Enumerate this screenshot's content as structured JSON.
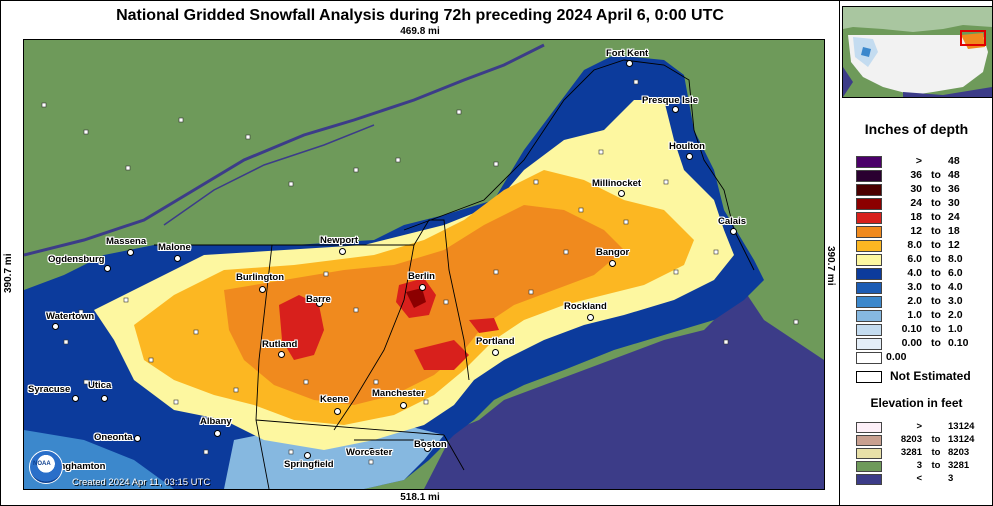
{
  "title": "National Gridded Snowfall Analysis during 72h preceding 2024 April 6, 0:00 UTC",
  "distances": {
    "top": "469.8 mi",
    "bottom": "518.1 mi",
    "left": "390.7 mi",
    "right": "390.7 mi"
  },
  "created": "Created 2024 Apr 11, 03:15 UTC",
  "logo_text": "NOAA",
  "cities": [
    {
      "name": "Fort Kent"
    },
    {
      "name": "Presque Isle"
    },
    {
      "name": "Houlton"
    },
    {
      "name": "Millinocket"
    },
    {
      "name": "Calais"
    },
    {
      "name": "Bangor"
    },
    {
      "name": "Rockland"
    },
    {
      "name": "Portland"
    },
    {
      "name": "Berlin"
    },
    {
      "name": "Newport"
    },
    {
      "name": "Massena"
    },
    {
      "name": "Malone"
    },
    {
      "name": "Ogdensburg"
    },
    {
      "name": "Burlington"
    },
    {
      "name": "Barre"
    },
    {
      "name": "Rutland"
    },
    {
      "name": "Watertown"
    },
    {
      "name": "Syracuse"
    },
    {
      "name": "Utica"
    },
    {
      "name": "Albany"
    },
    {
      "name": "Oneonta"
    },
    {
      "name": "Binghamton"
    },
    {
      "name": "Keene"
    },
    {
      "name": "Manchester"
    },
    {
      "name": "Boston"
    },
    {
      "name": "Worcester"
    },
    {
      "name": "Springfield"
    }
  ],
  "legend": {
    "title": "Inches of depth",
    "rows": [
      {
        "lo": ">",
        "to": "",
        "hi": "48",
        "color": "#4b0069"
      },
      {
        "lo": "36",
        "to": "to",
        "hi": "48",
        "color": "#2a0030"
      },
      {
        "lo": "30",
        "to": "to",
        "hi": "36",
        "color": "#4a0000"
      },
      {
        "lo": "24",
        "to": "to",
        "hi": "30",
        "color": "#8c0000"
      },
      {
        "lo": "18",
        "to": "to",
        "hi": "24",
        "color": "#d8201c"
      },
      {
        "lo": "12",
        "to": "to",
        "hi": "18",
        "color": "#f08a1e"
      },
      {
        "lo": "8.0",
        "to": "to",
        "hi": "12",
        "color": "#fcb722"
      },
      {
        "lo": "6.0",
        "to": "to",
        "hi": "8.0",
        "color": "#fdf7a0"
      },
      {
        "lo": "4.0",
        "to": "to",
        "hi": "6.0",
        "color": "#0c3b9c"
      },
      {
        "lo": "3.0",
        "to": "to",
        "hi": "4.0",
        "color": "#1c5cb4"
      },
      {
        "lo": "2.0",
        "to": "to",
        "hi": "3.0",
        "color": "#3c88cc"
      },
      {
        "lo": "1.0",
        "to": "to",
        "hi": "2.0",
        "color": "#86b8e0"
      },
      {
        "lo": "0.10",
        "to": "to",
        "hi": "1.0",
        "color": "#c4dcf0"
      },
      {
        "lo": "0.00",
        "to": "to",
        "hi": "0.10",
        "color": "#e4eef8"
      },
      {
        "lo": "0.00",
        "to": "",
        "hi": "",
        "color": "#ffffff"
      }
    ],
    "not_estimated": "Not Estimated"
  },
  "elevation": {
    "title": "Elevation in feet",
    "rows": [
      {
        "lo": ">",
        "to": "",
        "hi": "13124",
        "color": "#fdf0f8"
      },
      {
        "lo": "8203",
        "to": "to",
        "hi": "13124",
        "color": "#c8a090"
      },
      {
        "lo": "3281",
        "to": "to",
        "hi": "8203",
        "color": "#e8e0a8"
      },
      {
        "lo": "3",
        "to": "to",
        "hi": "3281",
        "color": "#6e9a5a"
      },
      {
        "lo": "<",
        "to": "",
        "hi": "3",
        "color": "#3c3c88"
      }
    ]
  }
}
